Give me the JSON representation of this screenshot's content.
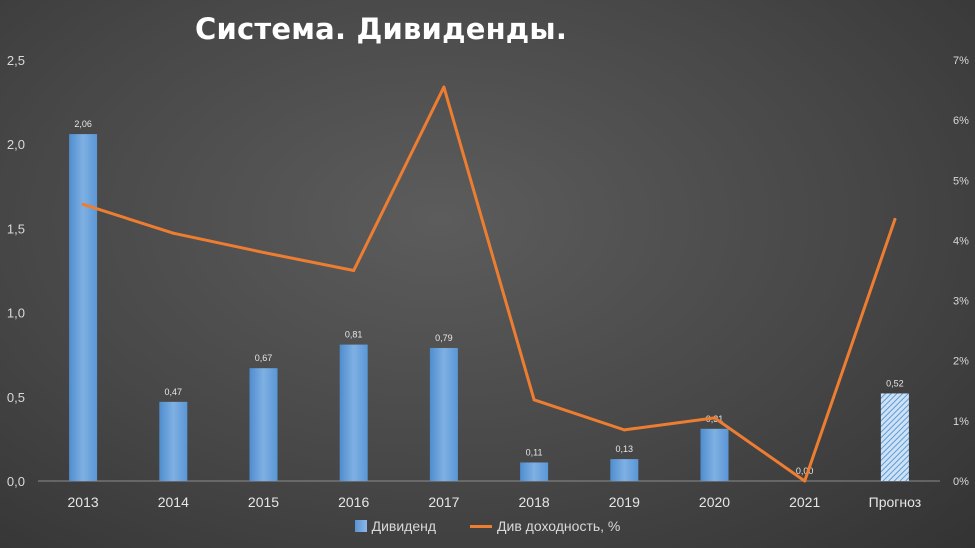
{
  "chart_data": {
    "type": "bar+line",
    "title": "Система. Дивиденды.",
    "categories": [
      "2013",
      "2014",
      "2015",
      "2016",
      "2017",
      "2018",
      "2019",
      "2020",
      "2021",
      "Прогноз"
    ],
    "series": [
      {
        "name": "Дивиденд",
        "type": "bar",
        "axis": "left",
        "values": [
          2.06,
          0.47,
          0.67,
          0.81,
          0.79,
          0.11,
          0.13,
          0.31,
          0.0,
          0.52
        ],
        "labels": [
          "2,06",
          "0,47",
          "0,67",
          "0,81",
          "0,79",
          "0,11",
          "0,13",
          "0,31",
          "0,00",
          "0,52"
        ],
        "hatched_last": true,
        "color": "#5b9bd5"
      },
      {
        "name": "Див доходность, %",
        "type": "line",
        "axis": "right",
        "values": [
          4.6,
          4.12,
          3.8,
          3.5,
          6.55,
          1.35,
          0.85,
          1.05,
          0.0,
          4.35
        ],
        "color": "#ed7d31"
      }
    ],
    "y_left": {
      "min": 0,
      "max": 2.5,
      "ticks": [
        "0,0",
        "0,5",
        "1,0",
        "1,5",
        "2,0",
        "2,5"
      ]
    },
    "y_right": {
      "min": 0,
      "max": 7,
      "ticks": [
        "0%",
        "1%",
        "2%",
        "3%",
        "4%",
        "5%",
        "6%",
        "7%"
      ]
    },
    "grid": false,
    "legend_position": "bottom"
  }
}
